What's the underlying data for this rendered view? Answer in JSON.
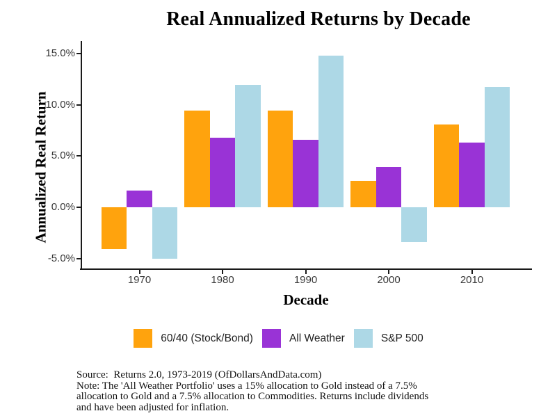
{
  "chart_data": {
    "type": "bar",
    "title": "Real Annualized Returns by Decade",
    "xlabel": "Decade",
    "ylabel": "Annualized Real Return",
    "categories": [
      "1970",
      "1980",
      "1990",
      "2000",
      "2010"
    ],
    "series": [
      {
        "name": "60/40 (Stock/Bond)",
        "color": "#FFA30D",
        "values": [
          -4.1,
          9.4,
          9.4,
          2.6,
          8.1
        ]
      },
      {
        "name": "All Weather",
        "color": "#9933D6",
        "values": [
          1.6,
          6.8,
          6.6,
          3.9,
          6.3
        ]
      },
      {
        "name": "S&P 500",
        "color": "#ADD8E6",
        "values": [
          -5.0,
          11.9,
          14.8,
          -3.4,
          11.7
        ]
      }
    ],
    "y_ticks": [
      {
        "value": 15,
        "label": "15.0%"
      },
      {
        "value": 10,
        "label": "10.0%"
      },
      {
        "value": 5,
        "label": "5.0%"
      },
      {
        "value": 0,
        "label": "0.0%"
      },
      {
        "value": -5,
        "label": "-5.0%"
      }
    ],
    "ylim": [
      -6,
      16.1
    ],
    "grid": false,
    "legend_position": "bottom",
    "unit": "percent"
  },
  "footnote": {
    "lines": [
      "Source:  Returns 2.0, 1973-2019 (OfDollarsAndData.com)",
      "Note: The 'All Weather Portfolio' uses a 15% allocation to Gold instead of a 7.5%",
      "allocation to Gold and a 7.5% allocation to Commodities. Returns include dividends",
      "and have been adjusted for inflation."
    ]
  }
}
